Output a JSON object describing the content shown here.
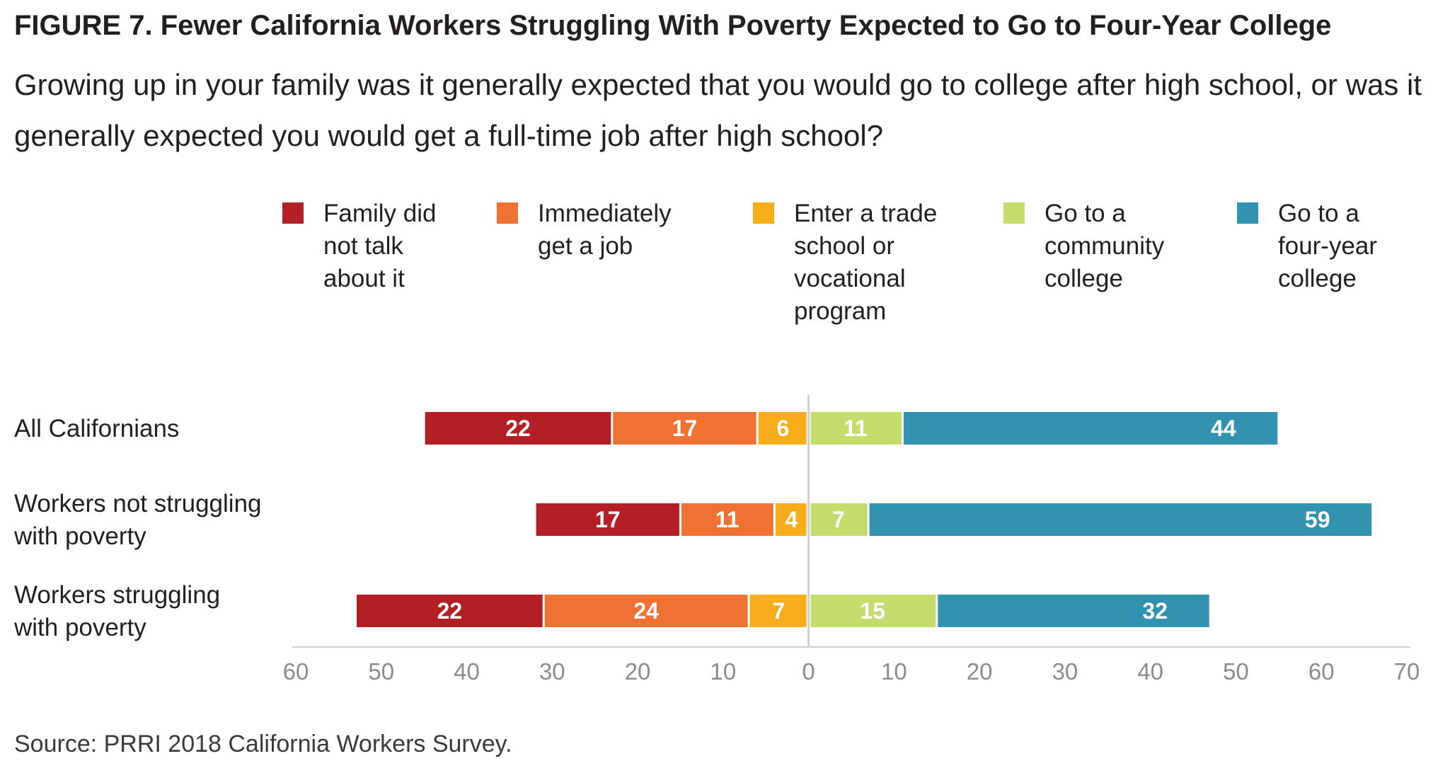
{
  "title": "FIGURE 7. Fewer California Workers Struggling With Poverty Expected to Go to Four-Year College",
  "subtitle": "Growing up in your family was it generally expected that you would go to college after high school, or was it generally expected you would get a full-time job after high school?",
  "source": "Source: PRRI 2018 California Workers Survey.",
  "chart_data": {
    "type": "bar",
    "orientation": "horizontal-diverging-stacked",
    "categories": [
      "All Californians",
      "Workers not struggling with poverty",
      "Workers struggling with poverty"
    ],
    "category_lines": [
      [
        "All Californians"
      ],
      [
        "Workers not struggling",
        "with poverty"
      ],
      [
        "Workers struggling",
        "with poverty"
      ]
    ],
    "series": [
      {
        "name": "Family did not talk about it",
        "legend_lines": [
          "Family did",
          "not talk",
          "about it"
        ],
        "side": "left",
        "color": "#b22025",
        "values": [
          22,
          17,
          22
        ]
      },
      {
        "name": "Immediately get a job",
        "legend_lines": [
          "Immediately",
          "get a job"
        ],
        "side": "left",
        "color": "#f07232",
        "values": [
          17,
          11,
          24
        ]
      },
      {
        "name": "Enter a trade school or vocational program",
        "legend_lines": [
          "Enter a trade",
          "school or",
          "vocational",
          "program"
        ],
        "side": "left",
        "color": "#f8ae1c",
        "values": [
          6,
          4,
          7
        ]
      },
      {
        "name": "Go to a community college",
        "legend_lines": [
          "Go to a",
          "community",
          "college"
        ],
        "side": "right",
        "color": "#c4dc6b",
        "values": [
          11,
          7,
          15
        ]
      },
      {
        "name": "Go to a four-year college",
        "legend_lines": [
          "Go to a",
          "four-year",
          "college"
        ],
        "side": "right",
        "color": "#3293b1",
        "values": [
          44,
          59,
          32
        ]
      }
    ],
    "x_ticks": [
      "60",
      "50",
      "40",
      "30",
      "20",
      "10",
      "0",
      "10",
      "20",
      "30",
      "40",
      "50",
      "60",
      "70"
    ],
    "xlim": [
      -60,
      70
    ],
    "legend_position": "top"
  }
}
